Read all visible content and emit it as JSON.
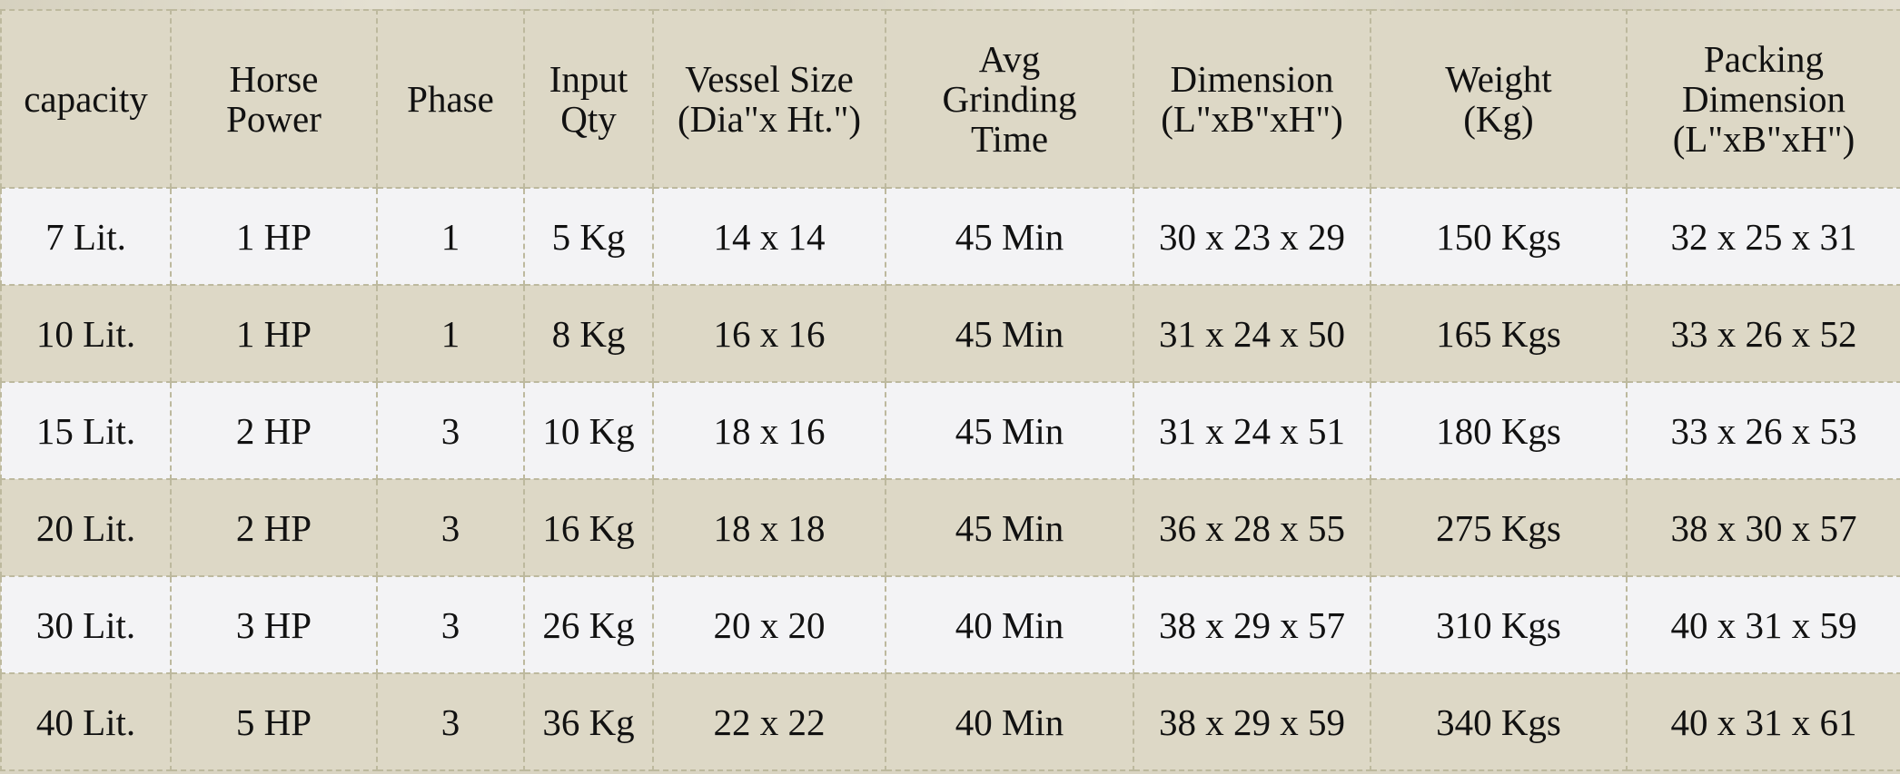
{
  "table": {
    "headers": [
      [
        "capacity"
      ],
      [
        "Horse",
        "Power"
      ],
      [
        "Phase"
      ],
      [
        "Input",
        "Qty"
      ],
      [
        "Vessel Size",
        "(Dia\"x Ht.\")"
      ],
      [
        "Avg",
        "Grinding",
        "Time"
      ],
      [
        "Dimension",
        "(L\"xB\"xH\")"
      ],
      [
        "Weight",
        "(Kg)"
      ],
      [
        "Packing",
        "Dimension",
        "(L\"xB\"xH\")"
      ]
    ],
    "rows": [
      [
        "7 Lit.",
        "1 HP",
        "1",
        "5 Kg",
        "14 x 14",
        "45 Min",
        "30 x 23 x 29",
        "150 Kgs",
        "32 x 25 x 31"
      ],
      [
        "10 Lit.",
        "1 HP",
        "1",
        "8 Kg",
        "16 x 16",
        "45 Min",
        "31 x 24 x 50",
        "165 Kgs",
        "33 x 26 x 52"
      ],
      [
        "15 Lit.",
        "2 HP",
        "3",
        "10 Kg",
        "18 x 16",
        "45 Min",
        "31 x 24 x 51",
        "180 Kgs",
        "33 x 26 x 53"
      ],
      [
        "20 Lit.",
        "2 HP",
        "3",
        "16 Kg",
        "18 x 18",
        "45 Min",
        "36 x 28 x 55",
        "275 Kgs",
        "38 x 30 x 57"
      ],
      [
        "30 Lit.",
        "3 HP",
        "3",
        "26 Kg",
        "20 x 20",
        "40 Min",
        "38 x 29 x 57",
        "310 Kgs",
        "40 x 31 x 59"
      ],
      [
        "40 Lit.",
        "5 HP",
        "3",
        "36 Kg",
        "22 x 22",
        "40 Min",
        "38 x 29 x 59",
        "340 Kgs",
        "40 x 31 x 61"
      ]
    ]
  },
  "colors": {
    "header_bg": "#ddd8c6",
    "light_row": "#f3f3f5",
    "dark_row": "#ddd8c6",
    "border": "#bdb99e"
  }
}
